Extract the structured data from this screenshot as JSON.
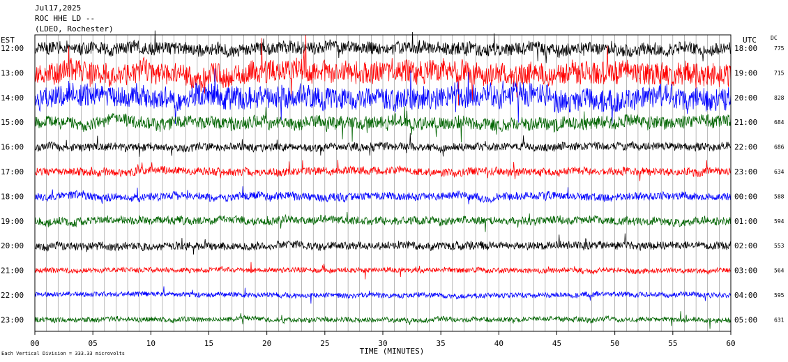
{
  "header": {
    "date": "Jul17,2025",
    "station": "ROC HHE LD --",
    "location": "(LDEO, Rochester)"
  },
  "left_label": "EST",
  "right_label": "UTC",
  "dc_label": "DC",
  "footer_note": "Each Vertical Division =  333.33 microvolts",
  "chart_data": {
    "type": "line",
    "title": "",
    "xlabel": "TIME (MINUTES)",
    "xlim": [
      0,
      60
    ],
    "x_ticks": [
      "00",
      "05",
      "10",
      "15",
      "20",
      "25",
      "30",
      "35",
      "40",
      "45",
      "50",
      "55",
      "60"
    ],
    "grid": "vertical lines every minute",
    "rows": [
      {
        "est": "12:00",
        "utc": "18:00",
        "dc": "775",
        "color": "#000000",
        "amplitude": "high"
      },
      {
        "est": "13:00",
        "utc": "19:00",
        "dc": "715",
        "color": "#ff0000",
        "amplitude": "very high"
      },
      {
        "est": "14:00",
        "utc": "20:00",
        "dc": "828",
        "color": "#0000ff",
        "amplitude": "very high"
      },
      {
        "est": "15:00",
        "utc": "21:00",
        "dc": "684",
        "color": "#006400",
        "amplitude": "high"
      },
      {
        "est": "16:00",
        "utc": "22:00",
        "dc": "686",
        "color": "#000000",
        "amplitude": "moderate"
      },
      {
        "est": "17:00",
        "utc": "23:00",
        "dc": "634",
        "color": "#ff0000",
        "amplitude": "moderate"
      },
      {
        "est": "18:00",
        "utc": "00:00",
        "dc": "588",
        "color": "#0000ff",
        "amplitude": "moderate"
      },
      {
        "est": "19:00",
        "utc": "01:00",
        "dc": "594",
        "color": "#006400",
        "amplitude": "moderate"
      },
      {
        "est": "20:00",
        "utc": "02:00",
        "dc": "553",
        "color": "#000000",
        "amplitude": "moderate"
      },
      {
        "est": "21:00",
        "utc": "03:00",
        "dc": "564",
        "color": "#ff0000",
        "amplitude": "low"
      },
      {
        "est": "22:00",
        "utc": "04:00",
        "dc": "595",
        "color": "#0000ff",
        "amplitude": "low"
      },
      {
        "est": "23:00",
        "utc": "05:00",
        "dc": "631",
        "color": "#006400",
        "amplitude": "low"
      }
    ]
  }
}
